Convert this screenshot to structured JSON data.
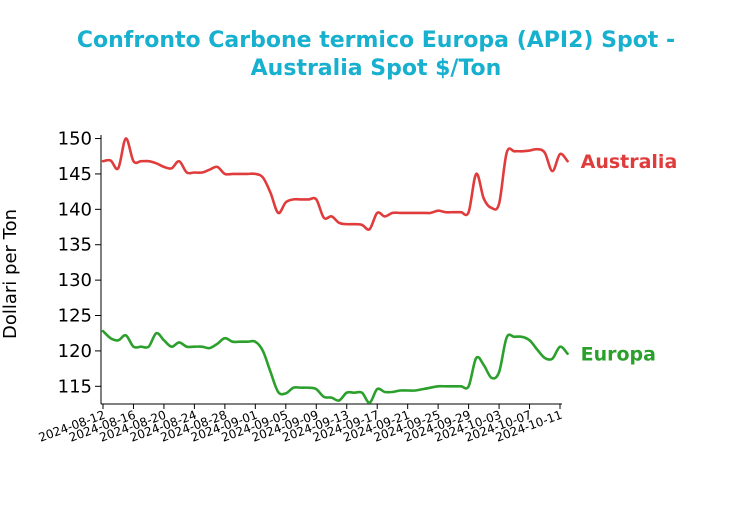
{
  "chart_data": {
    "type": "line",
    "title_line1": "Confronto Carbone termico Europa (API2) Spot -",
    "title_line2": "Australia Spot $/Ton",
    "title_color": "#17b0cf",
    "xlabel": "",
    "ylabel": "Dollari per Ton",
    "ylim": [
      112.5,
      150.5
    ],
    "yticks": [
      115,
      120,
      125,
      130,
      135,
      140,
      145,
      150
    ],
    "xlim": [
      "2024-08-12",
      "2024-10-11"
    ],
    "xticks": [
      "2024-08-12",
      "2024-08-16",
      "2024-08-20",
      "2024-08-24",
      "2024-08-28",
      "2024-09-01",
      "2024-09-05",
      "2024-09-09",
      "2024-09-13",
      "2024-09-17",
      "2024-09-21",
      "2024-09-25",
      "2024-09-29",
      "2024-10-03",
      "2024-10-07",
      "2024-10-11"
    ],
    "grid": false,
    "legend": "labels at right end of lines",
    "series": [
      {
        "name": "Australia",
        "color": "#e03c3c",
        "points": [
          [
            "2024-08-12",
            146.8
          ],
          [
            "2024-08-13",
            146.9
          ],
          [
            "2024-08-14",
            145.8
          ],
          [
            "2024-08-15",
            150.0
          ],
          [
            "2024-08-16",
            146.8
          ],
          [
            "2024-08-17",
            146.8
          ],
          [
            "2024-08-18",
            146.8
          ],
          [
            "2024-08-19",
            146.5
          ],
          [
            "2024-08-20",
            146.0
          ],
          [
            "2024-08-21",
            145.8
          ],
          [
            "2024-08-22",
            146.8
          ],
          [
            "2024-08-23",
            145.2
          ],
          [
            "2024-08-24",
            145.2
          ],
          [
            "2024-08-25",
            145.2
          ],
          [
            "2024-08-26",
            145.6
          ],
          [
            "2024-08-27",
            146.0
          ],
          [
            "2024-08-28",
            145.0
          ],
          [
            "2024-08-29",
            145.0
          ],
          [
            "2024-08-30",
            145.0
          ],
          [
            "2024-08-31",
            145.0
          ],
          [
            "2024-09-01",
            145.0
          ],
          [
            "2024-09-02",
            144.5
          ],
          [
            "2024-09-03",
            142.3
          ],
          [
            "2024-09-04",
            139.5
          ],
          [
            "2024-09-05",
            141.0
          ],
          [
            "2024-09-06",
            141.4
          ],
          [
            "2024-09-07",
            141.4
          ],
          [
            "2024-09-08",
            141.4
          ],
          [
            "2024-09-09",
            141.4
          ],
          [
            "2024-09-10",
            138.8
          ],
          [
            "2024-09-11",
            139.0
          ],
          [
            "2024-09-12",
            138.1
          ],
          [
            "2024-09-13",
            137.9
          ],
          [
            "2024-09-14",
            137.9
          ],
          [
            "2024-09-15",
            137.8
          ],
          [
            "2024-09-16",
            137.2
          ],
          [
            "2024-09-17",
            139.5
          ],
          [
            "2024-09-18",
            139.0
          ],
          [
            "2024-09-19",
            139.5
          ],
          [
            "2024-09-20",
            139.5
          ],
          [
            "2024-09-21",
            139.5
          ],
          [
            "2024-09-22",
            139.5
          ],
          [
            "2024-09-23",
            139.5
          ],
          [
            "2024-09-24",
            139.5
          ],
          [
            "2024-09-25",
            139.8
          ],
          [
            "2024-09-26",
            139.6
          ],
          [
            "2024-09-27",
            139.6
          ],
          [
            "2024-09-28",
            139.6
          ],
          [
            "2024-09-29",
            139.6
          ],
          [
            "2024-09-30",
            145.0
          ],
          [
            "2024-10-01",
            141.5
          ],
          [
            "2024-10-02",
            140.2
          ],
          [
            "2024-10-03",
            140.8
          ],
          [
            "2024-10-04",
            148.0
          ],
          [
            "2024-10-05",
            148.2
          ],
          [
            "2024-10-06",
            148.2
          ],
          [
            "2024-10-07",
            148.3
          ],
          [
            "2024-10-08",
            148.5
          ],
          [
            "2024-10-09",
            148.0
          ],
          [
            "2024-10-10",
            145.4
          ],
          [
            "2024-10-11",
            147.8
          ],
          [
            "2024-10-12",
            146.8
          ]
        ]
      },
      {
        "name": "Europa",
        "color": "#2ca02c",
        "points": [
          [
            "2024-08-12",
            122.8
          ],
          [
            "2024-08-13",
            121.8
          ],
          [
            "2024-08-14",
            121.5
          ],
          [
            "2024-08-15",
            122.2
          ],
          [
            "2024-08-16",
            120.6
          ],
          [
            "2024-08-17",
            120.6
          ],
          [
            "2024-08-18",
            120.6
          ],
          [
            "2024-08-19",
            122.5
          ],
          [
            "2024-08-20",
            121.5
          ],
          [
            "2024-08-21",
            120.6
          ],
          [
            "2024-08-22",
            121.2
          ],
          [
            "2024-08-23",
            120.6
          ],
          [
            "2024-08-24",
            120.6
          ],
          [
            "2024-08-25",
            120.6
          ],
          [
            "2024-08-26",
            120.4
          ],
          [
            "2024-08-27",
            121.0
          ],
          [
            "2024-08-28",
            121.8
          ],
          [
            "2024-08-29",
            121.3
          ],
          [
            "2024-08-30",
            121.3
          ],
          [
            "2024-08-31",
            121.3
          ],
          [
            "2024-09-01",
            121.3
          ],
          [
            "2024-09-02",
            120.0
          ],
          [
            "2024-09-03",
            117.0
          ],
          [
            "2024-09-04",
            114.2
          ],
          [
            "2024-09-05",
            114.0
          ],
          [
            "2024-09-06",
            114.8
          ],
          [
            "2024-09-07",
            114.8
          ],
          [
            "2024-09-08",
            114.8
          ],
          [
            "2024-09-09",
            114.6
          ],
          [
            "2024-09-10",
            113.5
          ],
          [
            "2024-09-11",
            113.4
          ],
          [
            "2024-09-12",
            113.0
          ],
          [
            "2024-09-13",
            114.1
          ],
          [
            "2024-09-14",
            114.1
          ],
          [
            "2024-09-15",
            114.1
          ],
          [
            "2024-09-16",
            112.7
          ],
          [
            "2024-09-17",
            114.6
          ],
          [
            "2024-09-18",
            114.2
          ],
          [
            "2024-09-19",
            114.2
          ],
          [
            "2024-09-20",
            114.4
          ],
          [
            "2024-09-21",
            114.4
          ],
          [
            "2024-09-22",
            114.4
          ],
          [
            "2024-09-23",
            114.6
          ],
          [
            "2024-09-24",
            114.8
          ],
          [
            "2024-09-25",
            115.0
          ],
          [
            "2024-09-26",
            115.0
          ],
          [
            "2024-09-27",
            115.0
          ],
          [
            "2024-09-28",
            115.0
          ],
          [
            "2024-09-29",
            115.0
          ],
          [
            "2024-09-30",
            119.0
          ],
          [
            "2024-10-01",
            118.0
          ],
          [
            "2024-10-02",
            116.2
          ],
          [
            "2024-10-03",
            117.0
          ],
          [
            "2024-10-04",
            121.9
          ],
          [
            "2024-10-05",
            122.0
          ],
          [
            "2024-10-06",
            122.0
          ],
          [
            "2024-10-07",
            121.5
          ],
          [
            "2024-10-08",
            120.2
          ],
          [
            "2024-10-09",
            119.0
          ],
          [
            "2024-10-10",
            118.9
          ],
          [
            "2024-10-11",
            120.6
          ],
          [
            "2024-10-12",
            119.6
          ]
        ]
      }
    ]
  }
}
